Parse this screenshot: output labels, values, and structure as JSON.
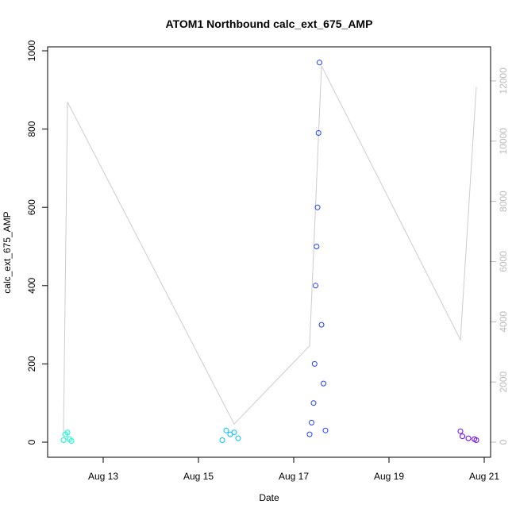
{
  "chart_data": {
    "type": "scatter",
    "title": "ATOM1 Northbound calc_ext_675_AMP",
    "xlabel": "Date",
    "ylabel": "calc_ext_675_AMP",
    "x_ticks": [
      "Aug 13",
      "Aug 15",
      "Aug 17",
      "Aug 19",
      "Aug 21"
    ],
    "y_ticks": [
      "0",
      "200",
      "400",
      "600",
      "800",
      "1000"
    ],
    "ylim": [
      0,
      1000
    ],
    "y2_ticks": [
      "0",
      "2000",
      "4000",
      "6000",
      "8000",
      "10000",
      "12000"
    ],
    "y2lim": [
      0,
      13000
    ],
    "y2_color": "#bbbbbb",
    "series": [
      {
        "color": "#00ffcc",
        "x": [
          "Aug 12 04:00",
          "Aug 12 05:00",
          "Aug 12 06:00",
          "Aug 12 07:00",
          "Aug 12 08:00"
        ],
        "y": [
          5,
          20,
          25,
          8,
          3
        ]
      },
      {
        "color": "#00bfff",
        "x": [
          "Aug 15 12:00",
          "Aug 15 14:00",
          "Aug 15 16:00",
          "Aug 15 18:00",
          "Aug 15 20:00"
        ],
        "y": [
          5,
          30,
          20,
          25,
          10
        ]
      },
      {
        "color": "#1e40ff",
        "x": [
          "Aug 17 08:00",
          "Aug 17 09:00",
          "Aug 17 10:00",
          "Aug 17 10:30",
          "Aug 17 11:00",
          "Aug 17 11:30",
          "Aug 17 12:00",
          "Aug 17 12:30",
          "Aug 17 13:00",
          "Aug 17 14:00",
          "Aug 17 15:00",
          "Aug 17 16:00"
        ],
        "y": [
          20,
          50,
          100,
          200,
          400,
          500,
          600,
          790,
          970,
          300,
          150,
          30
        ]
      },
      {
        "color": "#6a00ff",
        "x": [
          "Aug 20 12:00",
          "Aug 20 13:00",
          "Aug 20 16:00",
          "Aug 20 19:00",
          "Aug 20 20:00"
        ],
        "y": [
          28,
          15,
          10,
          8,
          5
        ]
      }
    ],
    "secondary_line": {
      "color": "#cccccc",
      "x": [
        "Aug 12 04:00",
        "Aug 12 06:00",
        "Aug 15 18:00",
        "Aug 17 08:00",
        "Aug 17 14:00",
        "Aug 20 12:00",
        "Aug 20 20:00"
      ],
      "y": [
        300,
        11300,
        600,
        3200,
        12500,
        3400,
        11800
      ]
    },
    "grid": false,
    "legend": "none"
  }
}
